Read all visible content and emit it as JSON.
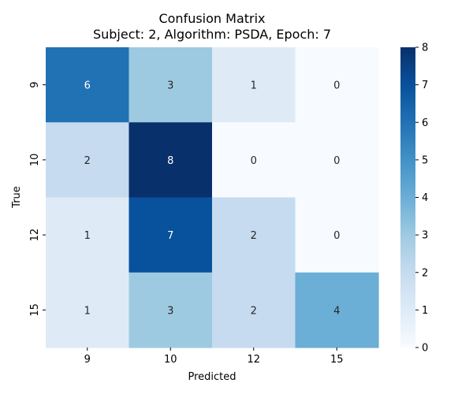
{
  "chart_data": {
    "type": "heatmap",
    "title": "Confusion Matrix",
    "subtitle": "Subject: 2, Algorithm: PSDA, Epoch: 7",
    "xlabel": "Predicted",
    "ylabel": "True",
    "x_categories": [
      "9",
      "10",
      "12",
      "15"
    ],
    "y_categories": [
      "9",
      "10",
      "12",
      "15"
    ],
    "values": [
      [
        6,
        3,
        1,
        0
      ],
      [
        2,
        8,
        0,
        0
      ],
      [
        1,
        7,
        2,
        0
      ],
      [
        1,
        3,
        2,
        4
      ]
    ],
    "vmin": 0,
    "vmax": 8,
    "colorbar_ticks": [
      0,
      1,
      2,
      3,
      4,
      5,
      6,
      7,
      8
    ],
    "colormap": "Blues",
    "grid": false
  }
}
